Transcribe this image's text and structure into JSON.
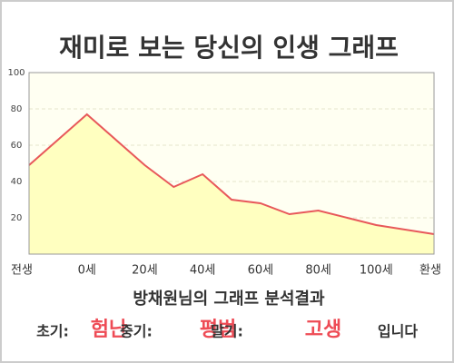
{
  "chart_data": {
    "type": "area",
    "title": "재미로 보는 당신의 인생 그래프",
    "categories": [
      "전생",
      "0세",
      null,
      "20세",
      null,
      "40세",
      null,
      "60세",
      null,
      "80세",
      null,
      "100세",
      "환생"
    ],
    "values": [
      49,
      77,
      63,
      49,
      37,
      44,
      30,
      28,
      22,
      24,
      20,
      16,
      11
    ],
    "color": "#e8585a",
    "fill": "#ffffc0",
    "ylim": [
      0,
      100
    ],
    "yticks": [
      20,
      40,
      60,
      80,
      100
    ],
    "grid": true
  },
  "summary": {
    "heading": "방채원님의 그래프 분석결과",
    "parts": [
      {
        "label": "초기:",
        "value": "험난"
      },
      {
        "label": "중기:",
        "value": "평범"
      },
      {
        "label": "말기:",
        "value": "고생"
      }
    ],
    "ending": "입니다"
  }
}
